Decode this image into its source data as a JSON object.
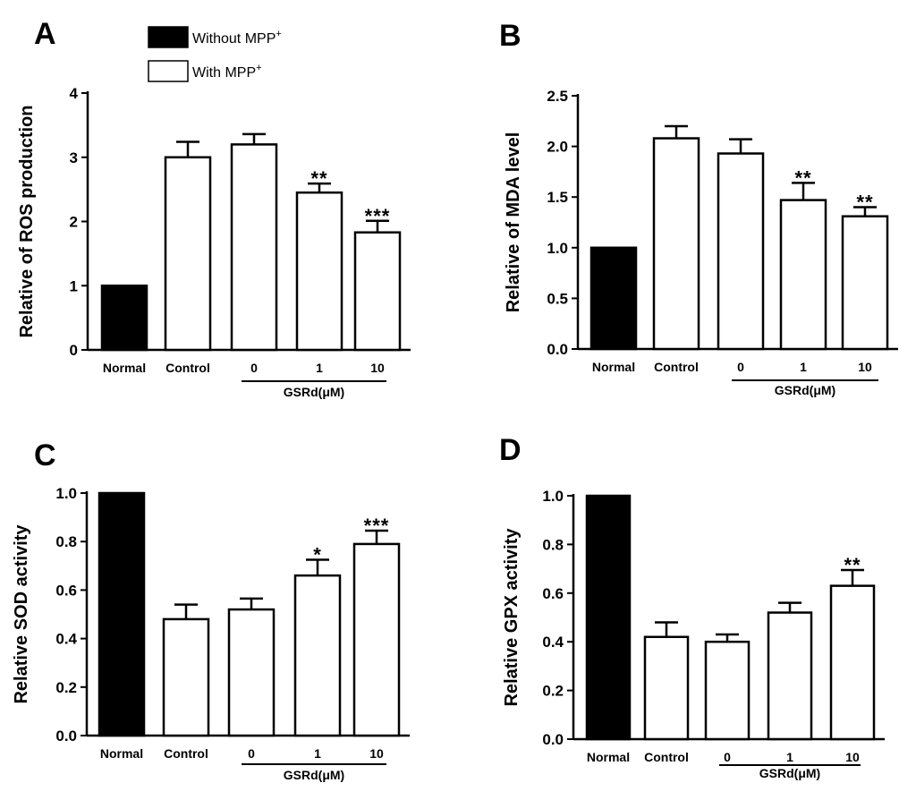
{
  "legend": {
    "items": [
      {
        "label": "Without MPP",
        "sup": "+",
        "fill": "#000000"
      },
      {
        "label": "With MPP",
        "sup": "+",
        "fill": "#ffffff"
      }
    ]
  },
  "chart_data": [
    {
      "panel": "A",
      "type": "bar",
      "ylabel": "Relative of ROS production",
      "categories": [
        "Normal",
        "Control",
        "0",
        "1",
        "10"
      ],
      "values": [
        1.0,
        3.0,
        3.2,
        2.45,
        1.83
      ],
      "errors": [
        0.0,
        0.24,
        0.16,
        0.14,
        0.18
      ],
      "fills": [
        "#000000",
        "#ffffff",
        "#ffffff",
        "#ffffff",
        "#ffffff"
      ],
      "significance": [
        "",
        "",
        "",
        "**",
        "***"
      ],
      "ylim": [
        0,
        4
      ],
      "yticks": [
        0,
        1,
        2,
        3,
        4
      ],
      "ytick_labels": [
        "0",
        "1",
        "2",
        "3",
        "4"
      ],
      "group_label": "GSRd(μM)"
    },
    {
      "panel": "B",
      "type": "bar",
      "ylabel": "Relative of MDA level",
      "categories": [
        "Normal",
        "Control",
        "0",
        "1",
        "10"
      ],
      "values": [
        1.0,
        2.08,
        1.93,
        1.47,
        1.31
      ],
      "errors": [
        0.0,
        0.12,
        0.14,
        0.17,
        0.09
      ],
      "fills": [
        "#000000",
        "#ffffff",
        "#ffffff",
        "#ffffff",
        "#ffffff"
      ],
      "significance": [
        "",
        "",
        "",
        "**",
        "**"
      ],
      "ylim": [
        0,
        2.5
      ],
      "yticks": [
        0,
        0.5,
        1,
        1.5,
        2,
        2.5
      ],
      "ytick_labels": [
        "0.0",
        "0.5",
        "1.0",
        "1.5",
        "2.0",
        "2.5"
      ],
      "group_label": "GSRd(μM)"
    },
    {
      "panel": "C",
      "type": "bar",
      "ylabel": "Relative SOD activity",
      "categories": [
        "Normal",
        "Control",
        "0",
        "1",
        "10"
      ],
      "values": [
        1.0,
        0.48,
        0.52,
        0.66,
        0.79
      ],
      "errors": [
        0.0,
        0.06,
        0.045,
        0.065,
        0.055
      ],
      "fills": [
        "#000000",
        "#ffffff",
        "#ffffff",
        "#ffffff",
        "#ffffff"
      ],
      "significance": [
        "",
        "",
        "",
        "*",
        "***"
      ],
      "ylim": [
        0,
        1
      ],
      "yticks": [
        0,
        0.2,
        0.4,
        0.6,
        0.8,
        1
      ],
      "ytick_labels": [
        "0.0",
        "0.2",
        "0.4",
        "0.6",
        "0.8",
        "1.0"
      ],
      "group_label": "GSRd(μM)"
    },
    {
      "panel": "D",
      "type": "bar",
      "ylabel": "Relative GPX activity",
      "categories": [
        "Normal",
        "Control",
        "0",
        "1",
        "10"
      ],
      "values": [
        1.0,
        0.42,
        0.4,
        0.52,
        0.63
      ],
      "errors": [
        0.0,
        0.06,
        0.03,
        0.04,
        0.065
      ],
      "fills": [
        "#000000",
        "#ffffff",
        "#ffffff",
        "#ffffff",
        "#ffffff"
      ],
      "significance": [
        "",
        "",
        "",
        "",
        "**"
      ],
      "ylim": [
        0,
        1
      ],
      "yticks": [
        0,
        0.2,
        0.4,
        0.6,
        0.8,
        1
      ],
      "ytick_labels": [
        "0.0",
        "0.2",
        "0.4",
        "0.6",
        "0.8",
        "1.0"
      ],
      "group_label": "GSRd(μM)"
    }
  ]
}
